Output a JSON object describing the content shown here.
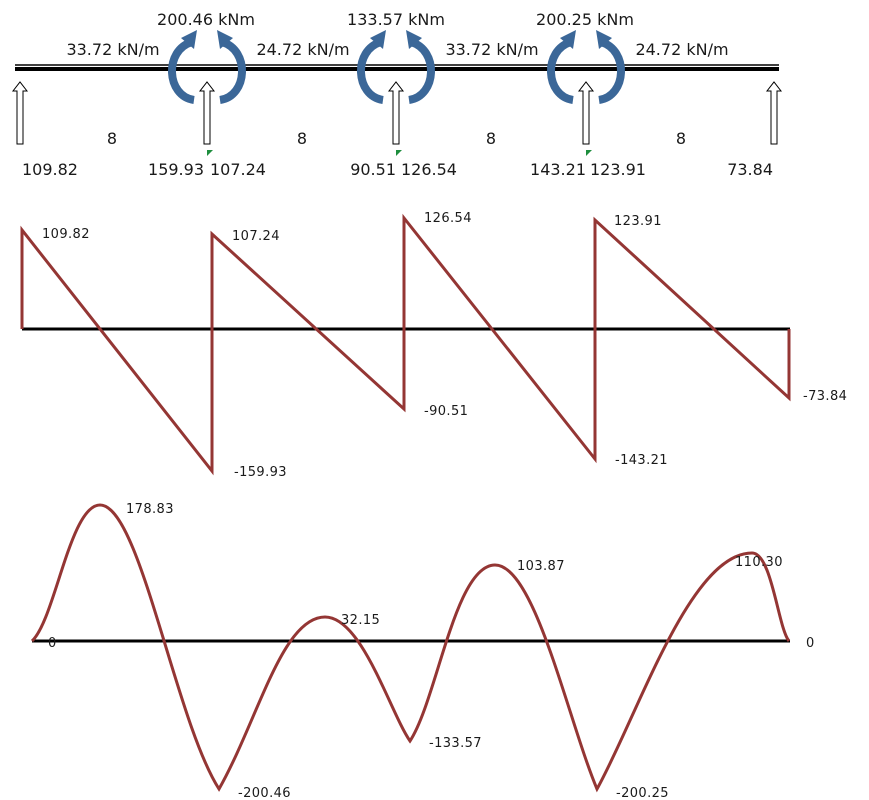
{
  "beam": {
    "moments": [
      "200.46 kNm",
      "133.57 kNm",
      "200.25 kNm"
    ],
    "loads": [
      "33.72 kN/m",
      "24.72 kN/m",
      "33.72 kN/m",
      "24.72 kN/m"
    ],
    "spans": [
      "8",
      "8",
      "8",
      "8"
    ],
    "reactions": [
      "109.82",
      "159.93",
      "107.24",
      "90.51",
      "126.54",
      "143.21",
      "123.91",
      "73.84"
    ],
    "colors": {
      "moment_arrow": "#3b6798",
      "diagram": "#943634",
      "support_mark": "#1e8e3e"
    }
  },
  "shear_diagram": {
    "labels": [
      "109.82",
      "-159.93",
      "107.24",
      "-90.51",
      "126.54",
      "-143.21",
      "123.91",
      "-73.84"
    ]
  },
  "moment_diagram": {
    "labels": [
      "0",
      "178.83",
      "-200.46",
      "32.15",
      "-133.57",
      "103.87",
      "-200.25",
      "110.30",
      "0"
    ]
  }
}
